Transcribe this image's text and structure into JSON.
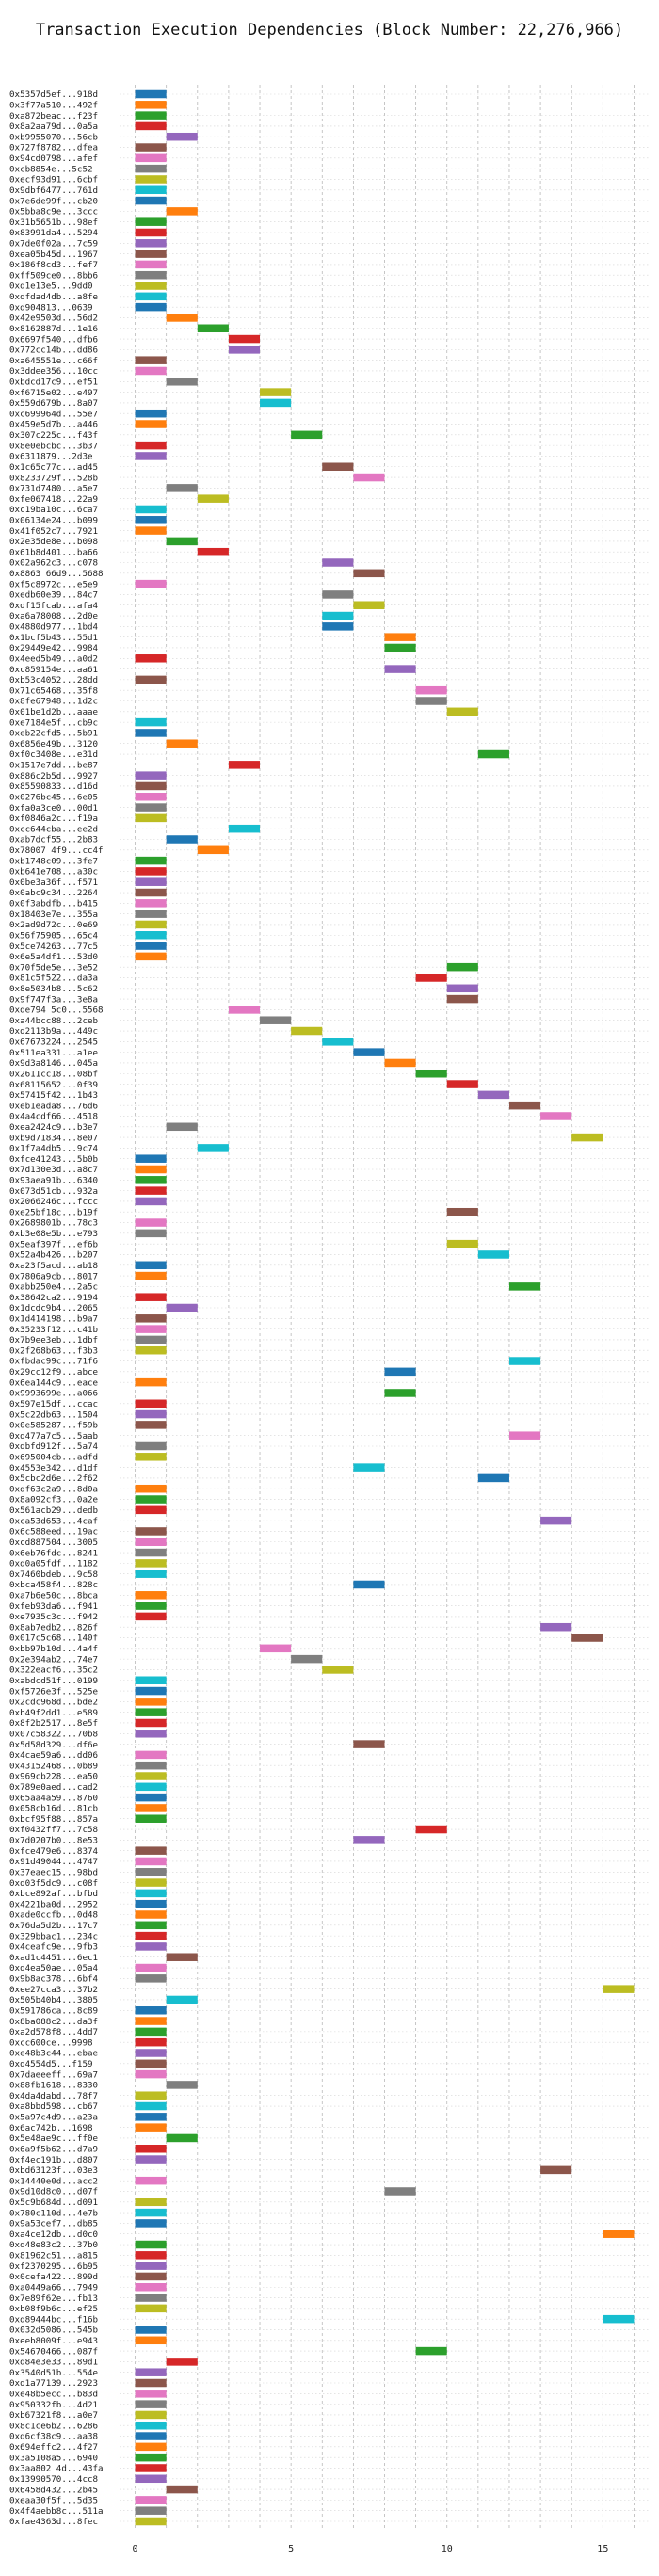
{
  "chart_data": {
    "type": "bar",
    "orientation": "horizontal",
    "title": "Transaction Execution Dependencies (Block Number: 22,276,966)",
    "xlabel": "",
    "ylabel": "",
    "xlim": [
      -0.5,
      16.5
    ],
    "xticks": [
      0,
      5,
      10,
      15
    ],
    "grid": "vertical dashed at every integer",
    "colors": [
      "#1f77b4",
      "#ff7f0e",
      "#2ca02c",
      "#d62728",
      "#9467bd",
      "#8c564b",
      "#e377c2",
      "#7f7f7f",
      "#bcbd22",
      "#17becf"
    ],
    "transactions": [
      "0x5357d5ef...918d",
      "0x3f77a510...492f",
      "0xa872beac...f23f",
      "0x8a2aa79d...0a5a",
      "0xb9955070...56cb",
      "0x727f8782...dfea",
      "0x94cd0798...afef",
      "0xcb8854e...5c52",
      "0xecf93d91...6cbf",
      "0x9dbf6477...761d",
      "0x7e6de99f...cb20",
      "0x5bba8c9e...3ccc",
      "0x31b5651b...98ef",
      "0x83991da4...5294",
      "0x7de0f02a...7c59",
      "0xea05b45d...1967",
      "0x186f8cd3...fef7",
      "0xff509ce0...8bb6",
      "0xd1e13e5...9dd0",
      "0xdfdad4db...a8fe",
      "0xd904813...0639",
      "0x42e9503d...56d2",
      "0x8162887d...1e16",
      "0x6697f540...dfb6",
      "0x772cc14b...dd86",
      "0xa645551e...c66f",
      "0x3ddee356...10cc",
      "0xbdcd17c9...ef51",
      "0xf6715e02...e497",
      "0x559d679b...8a07",
      "0xc699964d...55e7",
      "0x459e5d7b...a446",
      "0x307c225c...f43f",
      "0x8e0ebcbc...3b37",
      "0x6311879...2d3e",
      "0x1c65c77c...ad45",
      "0x8233729f...528b",
      "0x731d7480...a5e7",
      "0xfe067418...22a9",
      "0xc19ba10c...6ca7",
      "0x06134e24...b099",
      "0x41f052c7...7921",
      "0x2e35de8e...b098",
      "0x61b8d401...ba66",
      "0x02a962c3...c078",
      "0x8863 66d9...5688",
      "0xf5c8972c...e5e9",
      "0xedb60e39...84c7",
      "0xdf15fcab...afa4",
      "0xa6a78008...2d0e",
      "0x4880d977...1bd4",
      "0x1bcf5b43...55d1",
      "0x29449e42...9984",
      "0x4eed5b49...a0d2",
      "0xc859154e...aa61",
      "0xb53c4052...28dd",
      "0x71c65468...35f8",
      "0x8fe67948...1d2c",
      "0x01be1d2b...aaae",
      "0xe7184e5f...cb9c",
      "0xeb22cfd5...5b91",
      "0x6856e49b...3120",
      "0xf0c3408e...e31d",
      "0x1517e7dd...be87",
      "0x886c2b5d...9927",
      "0x85590833...d16d",
      "0x0276bc45...6e05",
      "0xfa0a3ce0...00d1",
      "0xf0846a2c...f19a",
      "0xcc644cba...ee2d",
      "0xab7dcf55...2b83",
      "0x78007 4f9...cc4f",
      "0xb1748c09...3fe7",
      "0xb641e708...a30c",
      "0x0be3a36f...f571",
      "0x0abc9c34...2264",
      "0x0f3abdfb...b415",
      "0x18403e7e...355a",
      "0x2ad9d72c...0e69",
      "0x56f75905...65c4",
      "0x5ce74263...77c5",
      "0x6e5a4df1...53d0",
      "0x70f5de5e...3e52",
      "0x81c5f522...da3a",
      "0x8e5034b8...5c62",
      "0x9f747f3a...3e8a",
      "0xde794 5c0...5568",
      "0xa44bcc88...2ceb",
      "0xd2113b9a...449c",
      "0x67673224...2545",
      "0x511ea331...a1ee",
      "0x9d3a8146...045a",
      "0x2611cc18...08bf",
      "0x68115652...0f39",
      "0x57415f42...1b43",
      "0xeb1eada8...76d6",
      "0x4a4cdf66...4518",
      "0xea2424c9...b3e7",
      "0xb9d71834...8e07",
      "0x1f7a4db5...9c74",
      "0xfce41243...5b0b",
      "0x7d130e3d...a8c7",
      "0x93aea91b...6340",
      "0x073d51cb...932a",
      "0x2066246c...fccc",
      "0xe25bf18c...b19f",
      "0x2689801b...78c3",
      "0xb3e08e5b...e793",
      "0x5eaf397f...ef6b",
      "0x52a4b426...b207",
      "0xa23f5acd...ab18",
      "0x7806a9cb...8017",
      "0xabb250e4...2a5c",
      "0x38642ca2...9194",
      "0x1dcdc9b4...2065",
      "0x1d414198...b9a7",
      "0x35233f12...c41b",
      "0x7b9ee3eb...1dbf",
      "0x2f268b63...f3b3",
      "0xfbdac99c...71f6",
      "0x29cc12f9...abce",
      "0x6ea144c9...eace",
      "0x9993699e...a066",
      "0x597e15df...ccac",
      "0x5c22db63...1504",
      "0x0e585287...f59b",
      "0xd477a7c5...5aab",
      "0xdbfd912f...5a74",
      "0x695004cb...adfd",
      "0x4553e342...d1df",
      "0x5cbc2d6e...2f62",
      "0xdf63c2a9...8d0a",
      "0x8a092cf3...0a2e",
      "0x561acb29...dedb",
      "0xca53d653...4caf",
      "0x6c588eed...19ac",
      "0xcd887504...3005",
      "0x6eb76fdc...8241",
      "0xd0a05fdf...1182",
      "0x7460bdeb...9c58",
      "0xbca458f4...828c",
      "0xa7b6e50c...8bca",
      "0xfeb93da6...f941",
      "0xe7935c3c...f942",
      "0x8ab7edb2...826f",
      "0x017c5c68...140f",
      "0xbb97b10d...4a4f",
      "0x2e394ab2...74e7",
      "0x322eacf6...35c2",
      "0xabdcd51f...0199",
      "0xf5726e3f...525e",
      "0x2cdc968d...bde2",
      "0xb49f2dd1...e589",
      "0x8f2b2517...8e5f",
      "0x07c58322...70b8",
      "0x5d58d329...df6e",
      "0x4cae59a6...dd06",
      "0x43152468...0b89",
      "0x969cb228...ea50",
      "0x789e0aed...cad2",
      "0x65aa4a59...8760",
      "0x058cb16d...81cb",
      "0xbcf95f88...857a",
      "0xf0432ff7...7c58",
      "0x7d0207b0...8e53",
      "0xfce479e6...8374",
      "0x91d49044...4747",
      "0x37eaec15...98bd",
      "0xd03f5dc9...c08f",
      "0xbce892af...bfbd",
      "0x4221ba0d...2952",
      "0xade0ccfb...0d48",
      "0x76da5d2b...17c7",
      "0x329bbac1...234c",
      "0x4ceafc9e...9fb3",
      "0xad1c4451...6ec1",
      "0xd4ea50ae...05a4",
      "0x9b8ac378...6bf4",
      "0xee27cca3...37b2",
      "0x505b40b4...3805",
      "0x591786ca...8c89",
      "0x8ba088c2...da3f",
      "0xa2d578f8...4dd7",
      "0xcc600ce...9998",
      "0xe48b3c44...ebae",
      "0xd4554d5...f159",
      "0x7daeeeff...69a7",
      "0x88fb1618...8330",
      "0x4da4dabd...78f7",
      "0xa8bbd598...cb67",
      "0x5a97c4d9...a23a",
      "0x6ac742b...1698",
      "0x5e48ae9c...ff0e",
      "0x6a9f5b62...d7a9",
      "0xf4ec191b...d807",
      "0xbd63123f...03e3",
      "0x14440e0d...acc2",
      "0x9d10d8c0...d07f",
      "0x5c9b684d...d091",
      "0x780c110d...4e7b",
      "0x9a53cef7...db85",
      "0xa4ce12db...d0c0",
      "0xd48e83c2...37b0",
      "0x81962c51...a815",
      "0xf2370295...6b95",
      "0x0cefa422...899d",
      "0xa0449a66...7949",
      "0x7e89f62e...fb13",
      "0xb08f9b6c...ef25",
      "0xd89444bc...f16b",
      "0x032d5086...545b",
      "0xeeb8009f...e943",
      "0x54670466...087f",
      "0xd84e3e33...89d1",
      "0x3540d51b...554e",
      "0xd1a77139...2923",
      "0xe48b5ecc...b83d",
      "0x950332fb...4d21",
      "0xb67321f8...a0e7",
      "0x8c1ce6b2...6286",
      "0xd6cf38c9...aa38",
      "0x694effc2...4f27",
      "0x3a5108a5...6940",
      "0x3aa802 4d...43fa",
      "0x13990570...4cc8",
      "0x6458d432...2b45",
      "0xeaa30f5f...5d35",
      "0x4f4aebb8c...511a",
      "0xfae4363d...8fec"
    ],
    "start": [
      0,
      0,
      0,
      0,
      1,
      0,
      0,
      0,
      0,
      0,
      0,
      1,
      0,
      0,
      0,
      0,
      0,
      0,
      0,
      0,
      0,
      1,
      2,
      3,
      3,
      0,
      0,
      1,
      4,
      4,
      0,
      0,
      5,
      0,
      0,
      6,
      7,
      1,
      2,
      0,
      0,
      0,
      1,
      2,
      6,
      7,
      0,
      6,
      7,
      6,
      6,
      8,
      8,
      0,
      8,
      0,
      9,
      9,
      10,
      0,
      0,
      1,
      11,
      3,
      0,
      0,
      0,
      0,
      0,
      3,
      1,
      2,
      0,
      0,
      0,
      0,
      0,
      0,
      0,
      0,
      0,
      0,
      10,
      9,
      10,
      10,
      3,
      4,
      5,
      6,
      7,
      8,
      9,
      10,
      11,
      12,
      13,
      1,
      14,
      2,
      0,
      0,
      0,
      0,
      0,
      10,
      0,
      0,
      10,
      11,
      0,
      0,
      12,
      0,
      1,
      0,
      0,
      0,
      0,
      12,
      8,
      0,
      8,
      0,
      0,
      0,
      12,
      0,
      0,
      7,
      11,
      0,
      0,
      0,
      13,
      0,
      0,
      0,
      0,
      0,
      7,
      0,
      0,
      0,
      13,
      14,
      4,
      5,
      6,
      0,
      0,
      0,
      0,
      0,
      0,
      7,
      0,
      0,
      0,
      0,
      0,
      0,
      0,
      9,
      7,
      0,
      0,
      0,
      0,
      0,
      0,
      0,
      0,
      0,
      0,
      1,
      0,
      0,
      15,
      1,
      0,
      0,
      0,
      0,
      0,
      0,
      0,
      1,
      0,
      0,
      0,
      0,
      1,
      0,
      0,
      13,
      0,
      8,
      0,
      0,
      0,
      15,
      0,
      0,
      0,
      0,
      0,
      0,
      0,
      15,
      0,
      0,
      9,
      1,
      0,
      0,
      0,
      0,
      0,
      0,
      0,
      0,
      0,
      0,
      0,
      1,
      0,
      0,
      0
    ],
    "color_index": [
      0,
      1,
      2,
      3,
      4,
      5,
      6,
      7,
      8,
      9,
      0,
      1,
      2,
      3,
      4,
      5,
      6,
      7,
      8,
      9,
      0,
      1,
      2,
      3,
      4,
      5,
      6,
      7,
      8,
      9,
      0,
      1,
      2,
      3,
      4,
      5,
      6,
      7,
      8,
      9,
      0,
      1,
      2,
      3,
      4,
      5,
      6,
      7,
      8,
      9,
      0,
      1,
      2,
      3,
      4,
      5,
      6,
      7,
      8,
      9,
      0,
      1,
      2,
      3,
      4,
      5,
      6,
      7,
      8,
      9,
      0,
      1,
      2,
      3,
      4,
      5,
      6,
      7,
      8,
      9,
      0,
      1,
      2,
      3,
      4,
      5,
      6,
      7,
      8,
      9,
      0,
      1,
      2,
      3,
      4,
      5,
      6,
      7,
      8,
      9,
      0,
      1,
      2,
      3,
      4,
      5,
      6,
      7,
      8,
      9,
      0,
      1,
      2,
      3,
      4,
      5,
      6,
      7,
      8,
      9,
      0,
      1,
      2,
      3,
      4,
      5,
      6,
      7,
      8,
      9,
      0,
      1,
      2,
      3,
      4,
      5,
      6,
      7,
      8,
      9,
      0,
      1,
      2,
      3,
      4,
      5,
      6,
      7,
      8,
      9,
      0,
      1,
      2,
      3,
      4,
      5,
      6,
      7,
      8,
      9,
      0,
      1,
      2,
      3,
      4,
      5,
      6,
      7,
      8,
      9,
      0,
      1,
      2,
      3,
      4,
      5,
      6,
      7,
      8,
      9,
      0,
      1,
      2,
      3,
      4,
      5,
      6,
      7,
      8,
      9,
      0,
      1,
      2,
      3,
      4,
      5,
      6,
      7,
      8,
      9,
      0,
      1,
      2,
      3,
      4,
      5,
      6,
      7,
      8,
      9,
      0,
      1,
      2,
      3,
      4,
      5,
      6,
      7,
      8,
      9,
      0,
      1,
      2,
      3,
      4,
      5,
      6,
      7,
      8
    ]
  }
}
